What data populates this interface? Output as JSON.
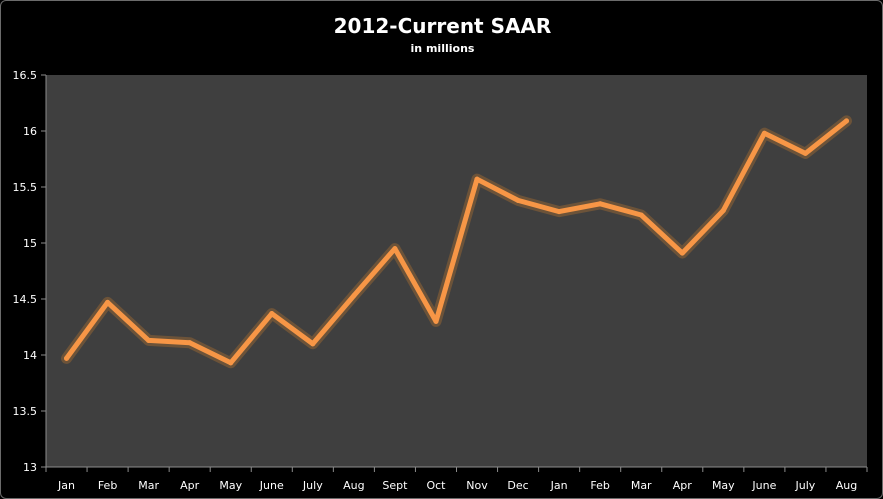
{
  "chart_data": {
    "type": "line",
    "title": "2012-Current SAAR",
    "subtitle": "in millions",
    "xlabel": "",
    "ylabel": "",
    "categories": [
      "Jan",
      "Feb",
      "Mar",
      "Apr",
      "May",
      "June",
      "July",
      "Aug",
      "Sept",
      "Oct",
      "Nov",
      "Dec",
      "Jan",
      "Feb",
      "Mar",
      "Apr",
      "May",
      "June",
      "July",
      "Aug"
    ],
    "series": [
      {
        "values": [
          13.97,
          14.47,
          14.13,
          14.11,
          13.93,
          14.37,
          14.1,
          14.53,
          14.95,
          14.3,
          15.57,
          15.38,
          15.28,
          15.35,
          15.25,
          14.91,
          15.29,
          15.98,
          15.8,
          16.09
        ]
      }
    ],
    "ylim": [
      13,
      16.5
    ],
    "yticks": [
      "13",
      "13.5",
      "14",
      "14.5",
      "15",
      "15.5",
      "16",
      "16.5"
    ],
    "grid": false,
    "legend": "none",
    "colors": {
      "background": "#000000",
      "plot_area": "#3f3f3f",
      "line": "#f79646",
      "glow": "#c0782e",
      "text": "#ffffff",
      "axis": "#8c8c8c"
    }
  }
}
